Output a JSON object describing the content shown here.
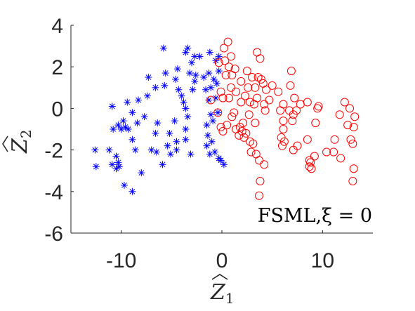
{
  "chart_data": {
    "type": "scatter",
    "title": "",
    "xlabel": "Z",
    "xlabel_sub": "1",
    "ylabel": "Z",
    "ylabel_sub": "2",
    "xlim": [
      -15,
      15
    ],
    "ylim": [
      -6,
      4
    ],
    "xticks": [
      -10,
      0,
      10
    ],
    "xtick_labels": [
      "-10",
      "0",
      "10"
    ],
    "yticks": [
      -6,
      -4,
      -2,
      0,
      2,
      4
    ],
    "ytick_labels": [
      "-6",
      "-4",
      "-2",
      "0",
      "2",
      "4"
    ],
    "grid": false,
    "annotation": "FSML,ξ = 0",
    "series": [
      {
        "marker": "asterisk",
        "color": "#0000ff",
        "points": [
          [
            -5.8,
            2.9
          ],
          [
            -3.4,
            2.9
          ],
          [
            -3.6,
            2.7
          ],
          [
            -2.7,
            2.5
          ],
          [
            -2.2,
            2.5
          ],
          [
            -1.2,
            2.7
          ],
          [
            -3.0,
            2.2
          ],
          [
            -0.6,
            2.3
          ],
          [
            -0.3,
            2.5
          ],
          [
            -4.4,
            1.9
          ],
          [
            -5.6,
            1.7
          ],
          [
            -4.6,
            1.4
          ],
          [
            -3.2,
            1.7
          ],
          [
            -2.6,
            1.6
          ],
          [
            -1.8,
            1.5
          ],
          [
            -1.3,
            1.7
          ],
          [
            -0.8,
            1.4
          ],
          [
            -0.3,
            1.8
          ],
          [
            -7.3,
            1.5
          ],
          [
            -5.7,
            1.1
          ],
          [
            -4.3,
            0.9
          ],
          [
            -6.6,
            1.0
          ],
          [
            -2.7,
            1.3
          ],
          [
            -1.1,
            1.0
          ],
          [
            -1.6,
            0.9
          ],
          [
            -7.4,
            0.6
          ],
          [
            -4.0,
            0.6
          ],
          [
            -2.9,
            0.9
          ],
          [
            -0.5,
            1.2
          ],
          [
            -10.9,
            0.1
          ],
          [
            -9.4,
            0.3
          ],
          [
            -8.3,
            0.4
          ],
          [
            -3.8,
            0.3
          ],
          [
            -1.3,
            0.4
          ],
          [
            -0.6,
            0.5
          ],
          [
            -8.9,
            -0.2
          ],
          [
            -3.6,
            0.0
          ],
          [
            -9.8,
            -0.6
          ],
          [
            -8.4,
            -0.7
          ],
          [
            -7.7,
            -0.4
          ],
          [
            -3.4,
            -0.4
          ],
          [
            -1.1,
            -0.3
          ],
          [
            -0.4,
            -0.2
          ],
          [
            -10.3,
            -0.8
          ],
          [
            -9.6,
            -0.9
          ],
          [
            -6.4,
            -0.7
          ],
          [
            -4.7,
            -0.6
          ],
          [
            -0.9,
            -0.6
          ],
          [
            -10.0,
            -1.0
          ],
          [
            -6.6,
            -1.2
          ],
          [
            -3.6,
            -1.0
          ],
          [
            -1.5,
            -0.8
          ],
          [
            -10.8,
            -1.0
          ],
          [
            -9.3,
            -1.0
          ],
          [
            -1.4,
            -1.3
          ],
          [
            -5.2,
            -1.2
          ],
          [
            -8.9,
            -1.5
          ],
          [
            -4.5,
            -1.6
          ],
          [
            -3.6,
            -1.5
          ],
          [
            -1.0,
            -1.6
          ],
          [
            -5.4,
            -1.8
          ],
          [
            -1.5,
            -1.8
          ],
          [
            -12.6,
            -2.0
          ],
          [
            -11.2,
            -2.0
          ],
          [
            -8.6,
            -2.0
          ],
          [
            -7.0,
            -2.0
          ],
          [
            -5.1,
            -2.2
          ],
          [
            -4.5,
            -2.0
          ],
          [
            -6.5,
            -2.1
          ],
          [
            -1.2,
            -2.2
          ],
          [
            -10.5,
            -2.3
          ],
          [
            -3.1,
            -2.2
          ],
          [
            -10.3,
            -2.6
          ],
          [
            -5.9,
            -2.7
          ],
          [
            -10.9,
            -2.7
          ],
          [
            -12.5,
            -2.8
          ],
          [
            -10.5,
            -2.9
          ],
          [
            -10.2,
            -2.8
          ],
          [
            -8.0,
            -3.1
          ],
          [
            -0.1,
            -2.5
          ],
          [
            0.2,
            -2.7
          ],
          [
            -0.3,
            -2.4
          ],
          [
            -9.7,
            -3.7
          ],
          [
            -8.9,
            -4.0
          ],
          [
            -0.7,
            -2.1
          ]
        ]
      },
      {
        "marker": "circle",
        "color": "#ff0000",
        "points": [
          [
            0.6,
            3.2
          ],
          [
            0.2,
            2.9
          ],
          [
            3.5,
            2.7
          ],
          [
            0.9,
            2.5
          ],
          [
            3.8,
            2.4
          ],
          [
            0.3,
            2.3
          ],
          [
            -0.3,
            2.2
          ],
          [
            0.7,
            2.0
          ],
          [
            1.3,
            1.9
          ],
          [
            2.5,
            1.8
          ],
          [
            6.9,
            1.8
          ],
          [
            0.4,
            1.6
          ],
          [
            1.0,
            1.6
          ],
          [
            3.0,
            1.5
          ],
          [
            3.6,
            1.5
          ],
          [
            3.9,
            1.4
          ],
          [
            1.9,
            1.3
          ],
          [
            4.1,
            1.2
          ],
          [
            5.0,
            1.1
          ],
          [
            0.9,
            1.0
          ],
          [
            2.6,
            1.0
          ],
          [
            3.3,
            1.0
          ],
          [
            6.8,
            1.1
          ],
          [
            4.4,
            0.9
          ],
          [
            -0.1,
            0.8
          ],
          [
            1.4,
            0.8
          ],
          [
            5.6,
            0.8
          ],
          [
            0.1,
            0.5
          ],
          [
            0.7,
            0.5
          ],
          [
            2.3,
            0.6
          ],
          [
            3.5,
            0.5
          ],
          [
            4.7,
            0.4
          ],
          [
            7.2,
            0.5
          ],
          [
            12.2,
            0.3
          ],
          [
            1.9,
            0.3
          ],
          [
            2.8,
            0.3
          ],
          [
            3.2,
            0.2
          ],
          [
            4.2,
            0.2
          ],
          [
            6.1,
            0.2
          ],
          [
            7.8,
            0.2
          ],
          [
            8.5,
            0.3
          ],
          [
            -1.1,
            0.4
          ],
          [
            9.6,
            0.1
          ],
          [
            9.5,
            0.0
          ],
          [
            12.7,
            0.0
          ],
          [
            4.3,
            -0.1
          ],
          [
            5.8,
            -0.1
          ],
          [
            6.7,
            -0.1
          ],
          [
            7.4,
            -0.1
          ],
          [
            -0.4,
            -0.2
          ],
          [
            1.2,
            -0.2
          ],
          [
            2.7,
            -0.3
          ],
          [
            7.1,
            -0.3
          ],
          [
            11.7,
            -0.3
          ],
          [
            13.2,
            -0.4
          ],
          [
            1.0,
            -0.4
          ],
          [
            6.1,
            -0.6
          ],
          [
            7.0,
            -0.6
          ],
          [
            2.1,
            -0.7
          ],
          [
            3.3,
            -0.7
          ],
          [
            9.3,
            -0.7
          ],
          [
            12.5,
            -0.8
          ],
          [
            -0.1,
            -0.9
          ],
          [
            0.5,
            -0.8
          ],
          [
            1.8,
            -0.9
          ],
          [
            13.1,
            -0.9
          ],
          [
            6.1,
            -1.0
          ],
          [
            1.4,
            -1.0
          ],
          [
            0.1,
            -1.1
          ],
          [
            2.0,
            -1.1
          ],
          [
            2.4,
            -1.2
          ],
          [
            1.7,
            -1.3
          ],
          [
            2.2,
            -1.4
          ],
          [
            5.9,
            -1.4
          ],
          [
            8.5,
            -1.5
          ],
          [
            11.2,
            -1.5
          ],
          [
            2.8,
            -1.6
          ],
          [
            6.2,
            -1.6
          ],
          [
            12.8,
            -1.5
          ],
          [
            3.1,
            -1.7
          ],
          [
            13.0,
            -1.7
          ],
          [
            6.0,
            -1.8
          ],
          [
            7.5,
            -1.8
          ],
          [
            7.1,
            -2.0
          ],
          [
            2.9,
            -2.1
          ],
          [
            10.4,
            -2.1
          ],
          [
            11.1,
            -2.1
          ],
          [
            3.4,
            -2.2
          ],
          [
            9.2,
            -2.3
          ],
          [
            11.8,
            -2.4
          ],
          [
            3.7,
            -2.5
          ],
          [
            8.7,
            -2.5
          ],
          [
            8.8,
            -2.6
          ],
          [
            4.2,
            -2.7
          ],
          [
            8.7,
            -2.8
          ],
          [
            8.9,
            -2.9
          ],
          [
            13.1,
            -2.9
          ],
          [
            3.8,
            -3.5
          ],
          [
            13.0,
            -3.5
          ],
          [
            3.7,
            -4.2
          ]
        ]
      }
    ]
  }
}
